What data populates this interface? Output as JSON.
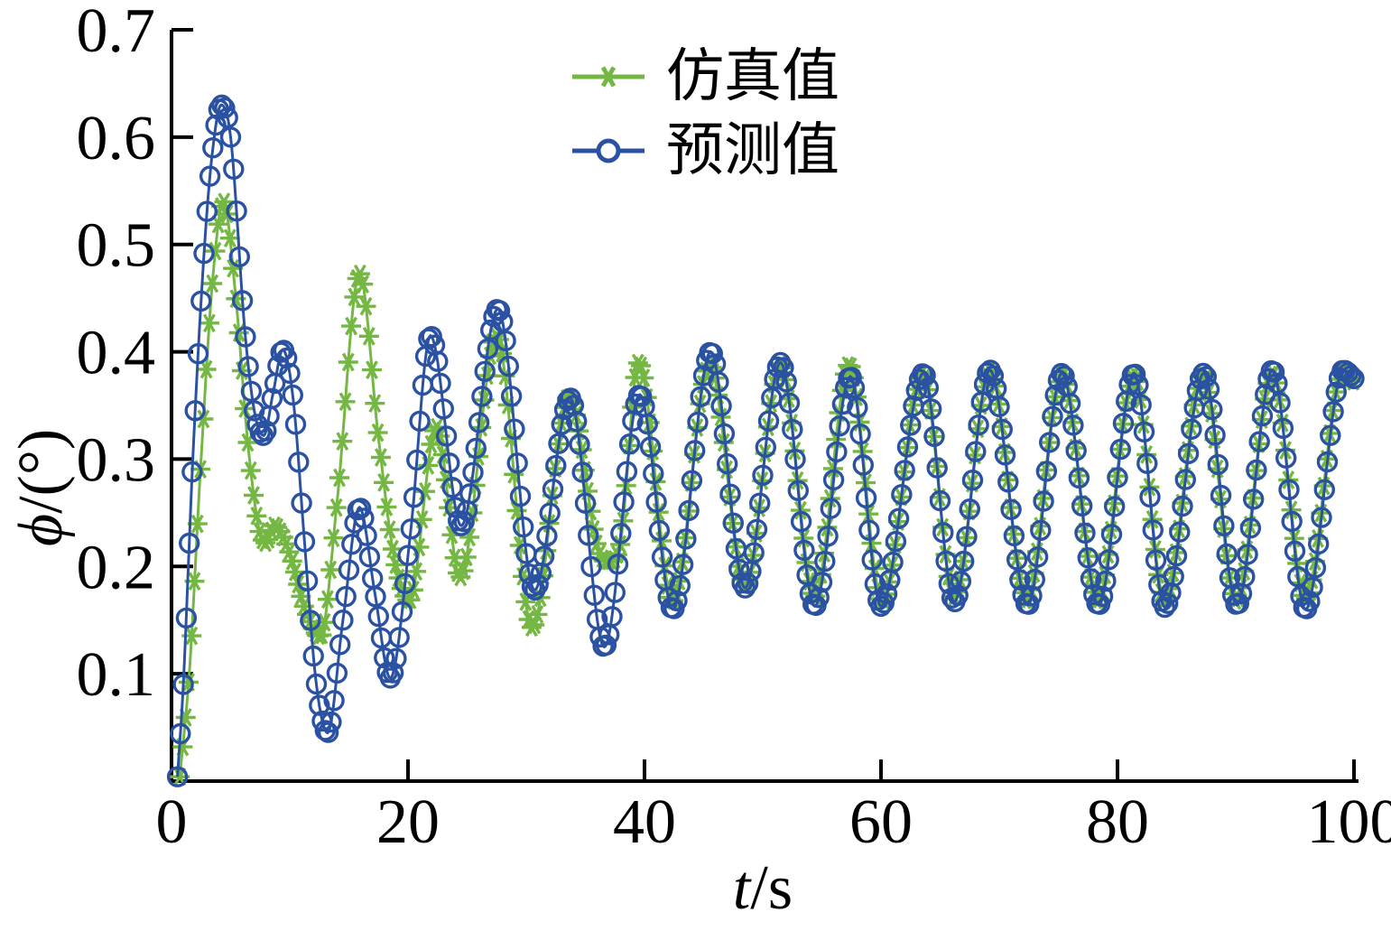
{
  "figure": {
    "background": "#ffffff",
    "axis_color": "#000000"
  },
  "chart_data": {
    "type": "line",
    "title": "",
    "xlabel": {
      "var": "t",
      "sep": "/",
      "unit": "s"
    },
    "ylabel": {
      "var": "ϕ",
      "sep": "/",
      "unit": "(°)"
    },
    "xlim": [
      0,
      100
    ],
    "ylim": [
      0,
      0.7
    ],
    "xticks": [
      0,
      20,
      40,
      60,
      80,
      100
    ],
    "yticks": [
      0.1,
      0.2,
      0.3,
      0.4,
      0.5,
      0.6,
      0.7
    ],
    "grid": false,
    "legend_position": "top-center",
    "marker_step": 0.25,
    "series": [
      {
        "name": "仿真值",
        "color": "#74b843",
        "marker": "asterisk",
        "anchors": [
          [
            0.7,
            0.004
          ],
          [
            1.5,
            0.1
          ],
          [
            2.5,
            0.3
          ],
          [
            3.5,
            0.47
          ],
          [
            4.4,
            0.54
          ],
          [
            5.4,
            0.455
          ],
          [
            6.5,
            0.31
          ],
          [
            7.4,
            0.235
          ],
          [
            8.0,
            0.222
          ],
          [
            8.7,
            0.238
          ],
          [
            9.5,
            0.226
          ],
          [
            10.2,
            0.205
          ],
          [
            11.2,
            0.163
          ],
          [
            12.6,
            0.135
          ],
          [
            14.0,
            0.26
          ],
          [
            15.9,
            0.473
          ],
          [
            17.5,
            0.32
          ],
          [
            18.8,
            0.21
          ],
          [
            20.1,
            0.168
          ],
          [
            22.4,
            0.33
          ],
          [
            24.4,
            0.19
          ],
          [
            27.5,
            0.415
          ],
          [
            30.5,
            0.143
          ],
          [
            33.6,
            0.358
          ],
          [
            36.2,
            0.212
          ],
          [
            37.0,
            0.205
          ],
          [
            37.9,
            0.218
          ],
          [
            39.5,
            0.39
          ],
          [
            42.4,
            0.168
          ],
          [
            45.5,
            0.388
          ],
          [
            48.5,
            0.182
          ],
          [
            51.5,
            0.388
          ],
          [
            54.4,
            0.172
          ],
          [
            57.3,
            0.388
          ],
          [
            60.1,
            0.168
          ],
          [
            63.5,
            0.38
          ],
          [
            66.2,
            0.172
          ],
          [
            69.2,
            0.383
          ],
          [
            72.3,
            0.168
          ],
          [
            75.3,
            0.38
          ],
          [
            78.3,
            0.168
          ],
          [
            81.4,
            0.38
          ],
          [
            84.0,
            0.168
          ],
          [
            87.2,
            0.38
          ],
          [
            90.0,
            0.168
          ],
          [
            93.1,
            0.38
          ],
          [
            95.9,
            0.17
          ],
          [
            99.0,
            0.38
          ],
          [
            100,
            0.372
          ]
        ]
      },
      {
        "name": "预测值",
        "color": "#2b52a2",
        "marker": "circle",
        "anchors": [
          [
            0.5,
            0.004
          ],
          [
            1.0,
            0.09
          ],
          [
            1.8,
            0.3
          ],
          [
            2.8,
            0.5
          ],
          [
            3.5,
            0.59
          ],
          [
            4.2,
            0.63
          ],
          [
            5.0,
            0.6
          ],
          [
            6.2,
            0.42
          ],
          [
            7.0,
            0.345
          ],
          [
            7.8,
            0.322
          ],
          [
            8.6,
            0.362
          ],
          [
            9.4,
            0.402
          ],
          [
            10.3,
            0.355
          ],
          [
            11.2,
            0.23
          ],
          [
            12.2,
            0.095
          ],
          [
            13.2,
            0.045
          ],
          [
            14.5,
            0.15
          ],
          [
            15.9,
            0.255
          ],
          [
            17.2,
            0.175
          ],
          [
            18.5,
            0.096
          ],
          [
            20.2,
            0.23
          ],
          [
            21.9,
            0.415
          ],
          [
            24.5,
            0.238
          ],
          [
            27.6,
            0.44
          ],
          [
            30.7,
            0.178
          ],
          [
            33.7,
            0.357
          ],
          [
            36.6,
            0.125
          ],
          [
            39.6,
            0.36
          ],
          [
            42.4,
            0.16
          ],
          [
            45.6,
            0.4
          ],
          [
            48.5,
            0.18
          ],
          [
            51.5,
            0.39
          ],
          [
            54.4,
            0.163
          ],
          [
            57.4,
            0.377
          ],
          [
            60.0,
            0.163
          ],
          [
            63.6,
            0.38
          ],
          [
            66.2,
            0.167
          ],
          [
            69.2,
            0.383
          ],
          [
            72.4,
            0.164
          ],
          [
            75.3,
            0.38
          ],
          [
            78.4,
            0.164
          ],
          [
            81.4,
            0.38
          ],
          [
            84.0,
            0.162
          ],
          [
            87.3,
            0.38
          ],
          [
            90.1,
            0.164
          ],
          [
            93.1,
            0.383
          ],
          [
            95.9,
            0.16
          ],
          [
            99.1,
            0.383
          ],
          [
            100,
            0.375
          ]
        ]
      }
    ]
  }
}
